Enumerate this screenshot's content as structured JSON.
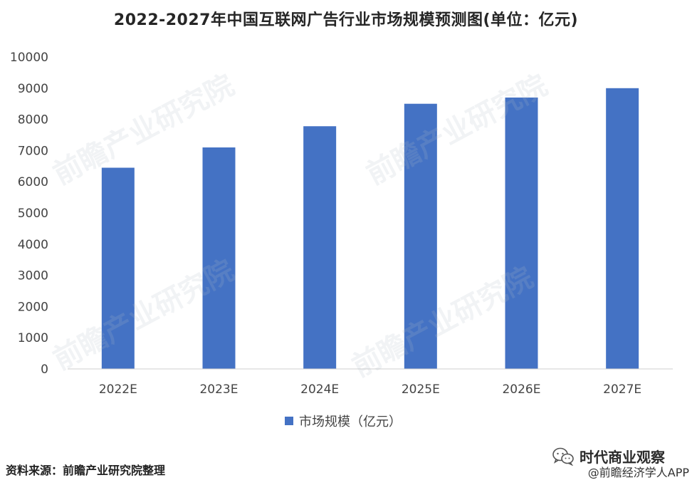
{
  "chart_data": {
    "type": "bar",
    "title": "2022-2027年中国互联网广告行业市场规模预测图(单位：亿元)",
    "categories": [
      "2022E",
      "2023E",
      "2024E",
      "2025E",
      "2026E",
      "2027E"
    ],
    "series": [
      {
        "name": "市场规模（亿元）",
        "values": [
          6450,
          7100,
          7780,
          8500,
          8700,
          9000
        ]
      }
    ],
    "ylim": [
      0,
      10000
    ],
    "yticks": [
      0,
      1000,
      2000,
      3000,
      4000,
      5000,
      6000,
      7000,
      8000,
      9000,
      10000
    ],
    "bar_color": "#4472C4",
    "grid": false,
    "legend_position": "bottom-center"
  },
  "footer": {
    "source": "资料来源：前瞻产业研究院整理",
    "wechat_account": "时代商业观察",
    "app_tag": "@前瞻经济学人APP"
  },
  "watermark": {
    "text": "前瞻产业研究院"
  },
  "icons": {
    "wechat": "wechat-icon"
  }
}
